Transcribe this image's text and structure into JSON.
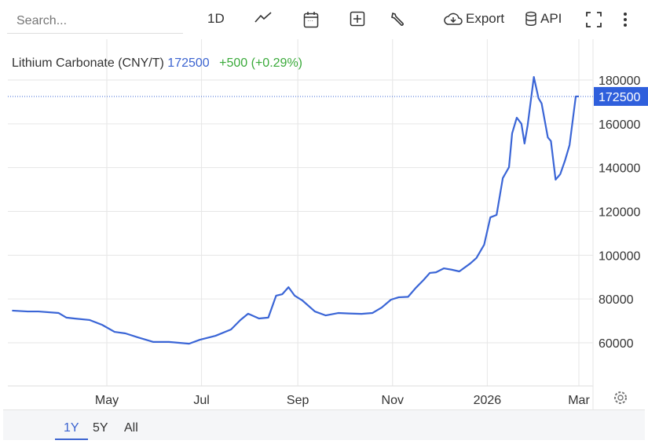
{
  "toolbar": {
    "search_placeholder": "Search...",
    "interval": "1D",
    "export": "Export",
    "api": "API"
  },
  "legend": {
    "name": "Lithium Carbonate (CNY/T)",
    "price": "172500",
    "change": "+500 (+0.29%)"
  },
  "ranges": [
    "1Y",
    "5Y",
    "All"
  ],
  "colors": {
    "line": "#3a65d6",
    "up": "#3aaa3a",
    "label_bg": "#2f5fdc"
  },
  "chart_data": {
    "type": "line",
    "title": "Lithium Carbonate (CNY/T)",
    "x_unit": "days since 2025-03-01",
    "xlim": [
      0,
      368
    ],
    "ylim": [
      40000,
      190000
    ],
    "xticks": [
      {
        "x": 61,
        "label": "May"
      },
      {
        "x": 122,
        "label": "Jul"
      },
      {
        "x": 184,
        "label": "Sep"
      },
      {
        "x": 245,
        "label": "Nov"
      },
      {
        "x": 306,
        "label": "2026"
      },
      {
        "x": 365,
        "label": "Mar"
      }
    ],
    "yticks": [
      60000,
      80000,
      100000,
      120000,
      140000,
      160000,
      180000
    ],
    "ytick_labels": [
      "60000",
      "80000",
      "100000",
      "120000",
      "140000",
      "160000",
      "180000"
    ],
    "last_value": 172500,
    "last_label": "172500",
    "x": [
      0,
      10,
      17,
      30,
      35,
      40,
      50,
      58,
      66,
      73,
      81,
      91,
      101,
      114,
      121,
      131,
      141,
      147,
      152,
      159,
      165,
      170,
      174,
      178,
      182,
      187,
      195,
      202,
      210,
      217,
      225,
      232,
      238,
      244,
      249,
      255,
      260,
      265,
      269,
      273,
      278,
      283,
      288,
      295,
      299,
      304,
      308,
      312,
      316,
      320,
      322,
      325,
      328,
      330,
      332,
      336,
      339,
      341,
      345,
      347,
      350,
      353,
      356,
      359,
      363,
      365
    ],
    "y": [
      74700,
      74300,
      74300,
      73600,
      71500,
      71100,
      70400,
      68200,
      65000,
      64300,
      62500,
      60400,
      60400,
      59600,
      61400,
      63200,
      66100,
      70400,
      73300,
      71100,
      71500,
      81500,
      82200,
      85400,
      81500,
      79300,
      74300,
      72500,
      73600,
      73400,
      73200,
      73600,
      76100,
      79700,
      80800,
      81000,
      85100,
      88700,
      91900,
      92200,
      94000,
      93400,
      92600,
      96200,
      98700,
      104800,
      117300,
      118400,
      135200,
      140200,
      155600,
      162800,
      160000,
      151000,
      159300,
      181400,
      171700,
      169300,
      153800,
      152100,
      134500,
      137000,
      143100,
      150300,
      172500,
      172500
    ]
  }
}
